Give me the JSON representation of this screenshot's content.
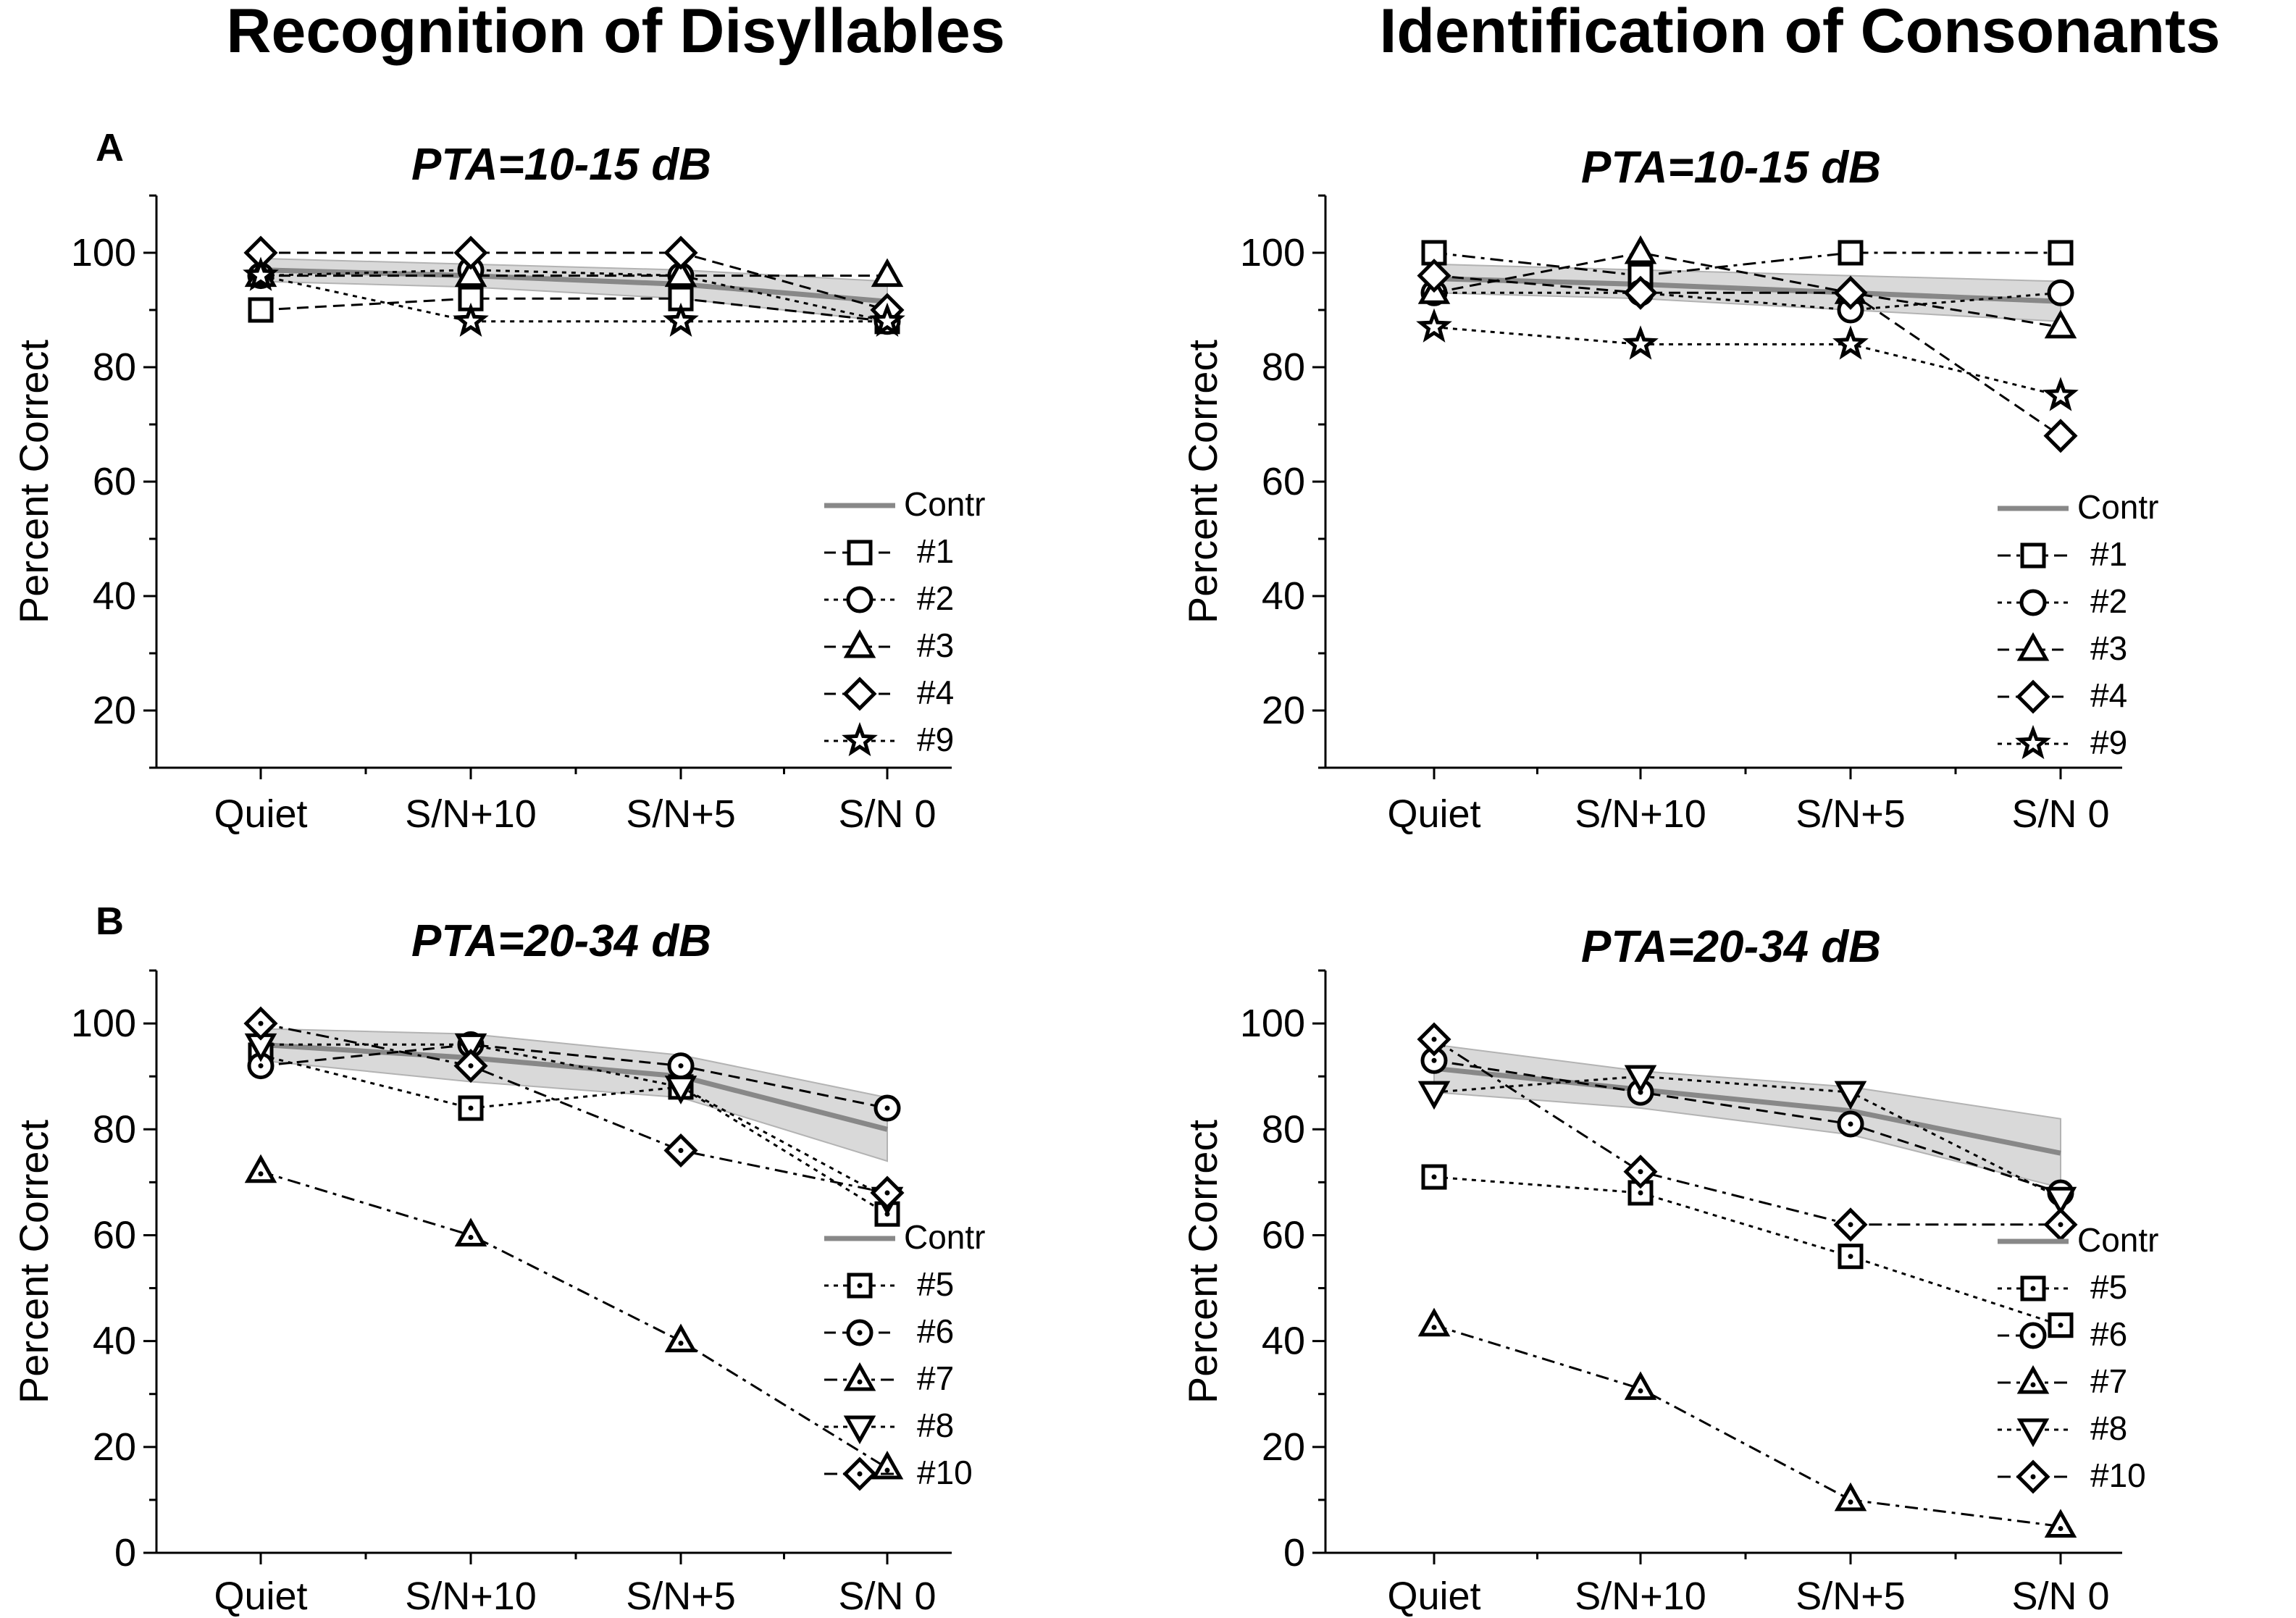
{
  "figure": {
    "column_titles": [
      "Recognition of Disyllables",
      "Identification of Consonants"
    ]
  },
  "colors": {
    "control_line": "#888888",
    "band_fill": "#d9d9d9",
    "band_edge": "#b3b3b3",
    "marker": "#000000"
  },
  "chart_data": [
    {
      "type": "line",
      "panel_letter": "A",
      "title": "PTA=10-15 dB",
      "xlabel": "",
      "ylabel": "Percent Correct",
      "categories": [
        "Quiet",
        "S/N+10",
        "S/N+5",
        "S/N 0"
      ],
      "ylim": [
        10,
        110
      ],
      "yticks": [
        20,
        40,
        60,
        80,
        100
      ],
      "control": {
        "name": "Contr",
        "values": [
          97,
          96,
          94.5,
          91.5
        ],
        "band_low": [
          95,
          94,
          92,
          88
        ],
        "band_high": [
          99,
          98,
          97,
          95
        ]
      },
      "series": [
        {
          "name": "#1",
          "marker": "square",
          "dash": "dash",
          "values": [
            90,
            92,
            92,
            88
          ]
        },
        {
          "name": "#2",
          "marker": "circle",
          "dash": "dot",
          "values": [
            96,
            97,
            96,
            88
          ]
        },
        {
          "name": "#3",
          "marker": "triangle-up",
          "dash": "dash",
          "values": [
            96,
            96,
            96,
            96
          ]
        },
        {
          "name": "#4",
          "marker": "diamond",
          "dash": "dash",
          "values": [
            100,
            100,
            100,
            90
          ]
        },
        {
          "name": "#9",
          "marker": "star",
          "dash": "dot",
          "values": [
            96,
            88,
            88,
            88
          ]
        }
      ]
    },
    {
      "type": "line",
      "panel_letter": "",
      "title": "PTA=10-15 dB",
      "xlabel": "",
      "ylabel": "Percent Correct",
      "categories": [
        "Quiet",
        "S/N+10",
        "S/N+5",
        "S/N 0"
      ],
      "ylim": [
        10,
        110
      ],
      "yticks": [
        20,
        40,
        60,
        80,
        100
      ],
      "control": {
        "name": "Contr",
        "values": [
          95.5,
          94.5,
          93,
          91.5
        ],
        "band_low": [
          93,
          92,
          90,
          88
        ],
        "band_high": [
          98,
          97,
          96,
          95
        ]
      },
      "series": [
        {
          "name": "#1",
          "marker": "square",
          "dash": "dashdot",
          "values": [
            100,
            96,
            100,
            100
          ]
        },
        {
          "name": "#2",
          "marker": "circle",
          "dash": "dot",
          "values": [
            93,
            93,
            90,
            93
          ]
        },
        {
          "name": "#3",
          "marker": "triangle-up",
          "dash": "dash",
          "values": [
            93,
            100,
            93,
            87
          ]
        },
        {
          "name": "#4",
          "marker": "diamond",
          "dash": "dash",
          "values": [
            96,
            93,
            93,
            68
          ]
        },
        {
          "name": "#9",
          "marker": "star",
          "dash": "dot",
          "values": [
            87,
            84,
            84,
            75
          ]
        }
      ]
    },
    {
      "type": "line",
      "panel_letter": "B",
      "title": "PTA=20-34 dB",
      "xlabel": "",
      "ylabel": "Percent Correct",
      "categories": [
        "Quiet",
        "S/N+10",
        "S/N+5",
        "S/N 0"
      ],
      "ylim": [
        0,
        110
      ],
      "yticks": [
        0,
        20,
        40,
        60,
        80,
        100
      ],
      "control": {
        "name": "Contr",
        "values": [
          96,
          93.5,
          90,
          80
        ],
        "band_low": [
          93,
          89,
          86,
          74
        ],
        "band_high": [
          99,
          98,
          94,
          86
        ]
      },
      "series": [
        {
          "name": "#5",
          "marker": "square-dot",
          "dash": "dot",
          "values": [
            94,
            84,
            88,
            64
          ]
        },
        {
          "name": "#6",
          "marker": "circle-dot",
          "dash": "dash",
          "values": [
            92,
            96,
            92,
            84
          ]
        },
        {
          "name": "#7",
          "marker": "triangle-dot",
          "dash": "dashdot",
          "values": [
            72,
            60,
            40,
            16
          ]
        },
        {
          "name": "#8",
          "marker": "triangle-down",
          "dash": "dot",
          "values": [
            96,
            96,
            88,
            67
          ]
        },
        {
          "name": "#10",
          "marker": "diamond-dot",
          "dash": "dashdot",
          "values": [
            100,
            92,
            76,
            68
          ]
        }
      ]
    },
    {
      "type": "line",
      "panel_letter": "",
      "title": "PTA=20-34 dB",
      "xlabel": "",
      "ylabel": "Percent Correct",
      "categories": [
        "Quiet",
        "S/N+10",
        "S/N+5",
        "S/N 0"
      ],
      "ylim": [
        0,
        110
      ],
      "yticks": [
        0,
        20,
        40,
        60,
        80,
        100
      ],
      "control": {
        "name": "Contr",
        "values": [
          91.5,
          87.5,
          83.5,
          75.5
        ],
        "band_low": [
          87,
          84,
          79,
          69
        ],
        "band_high": [
          96,
          91,
          88,
          82
        ]
      },
      "series": [
        {
          "name": "#5",
          "marker": "square-dot",
          "dash": "dot",
          "values": [
            71,
            68,
            56,
            43
          ]
        },
        {
          "name": "#6",
          "marker": "circle-dot",
          "dash": "dash",
          "values": [
            93,
            87,
            81,
            68
          ]
        },
        {
          "name": "#7",
          "marker": "triangle-dot",
          "dash": "dashdot",
          "values": [
            43,
            31,
            10,
            5
          ]
        },
        {
          "name": "#8",
          "marker": "triangle-down",
          "dash": "dot",
          "values": [
            87,
            90,
            87,
            67
          ]
        },
        {
          "name": "#10",
          "marker": "diamond-dot",
          "dash": "dashdot",
          "values": [
            97,
            72,
            62,
            62
          ]
        }
      ]
    }
  ]
}
